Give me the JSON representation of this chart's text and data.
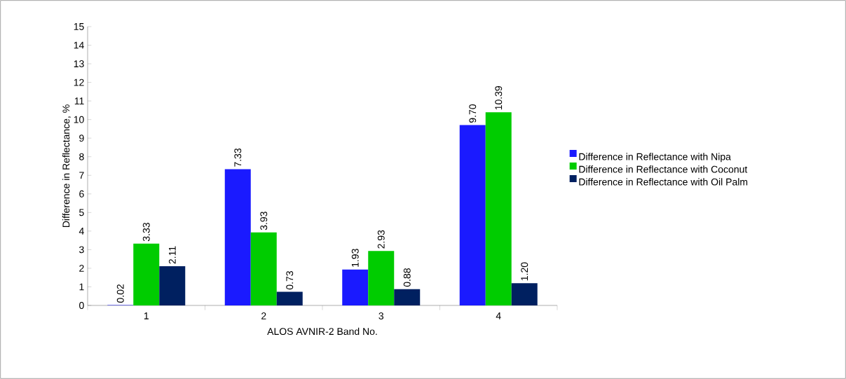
{
  "chart_data": {
    "type": "bar",
    "xlabel": "ALOS AVNIR-2 Band No.",
    "ylabel": "Difference in Reflectance, %",
    "categories": [
      "1",
      "2",
      "3",
      "4"
    ],
    "series": [
      {
        "name": "Difference in Reflectance with Nipa",
        "color": "#1a1aff",
        "values": [
          0.02,
          7.33,
          1.93,
          9.7
        ],
        "value_labels": [
          "0.02",
          "7.33",
          "1.93",
          "9.70"
        ]
      },
      {
        "name": "Difference in Reflectance with Coconut",
        "color": "#00cc00",
        "values": [
          3.33,
          3.93,
          2.93,
          10.39
        ],
        "value_labels": [
          "3.33",
          "3.93",
          "2.93",
          "10.39"
        ]
      },
      {
        "name": "Difference in Reflectance with Oil Palm",
        "color": "#002060",
        "values": [
          2.11,
          0.73,
          0.88,
          1.2
        ],
        "value_labels": [
          "2.11",
          "0.73",
          "0.88",
          "1.20"
        ]
      }
    ],
    "ylim": [
      0,
      15
    ],
    "yticks": [
      0,
      1,
      2,
      3,
      4,
      5,
      6,
      7,
      8,
      9,
      10,
      11,
      12,
      13,
      14,
      15
    ],
    "grid": false,
    "legend": "right"
  }
}
